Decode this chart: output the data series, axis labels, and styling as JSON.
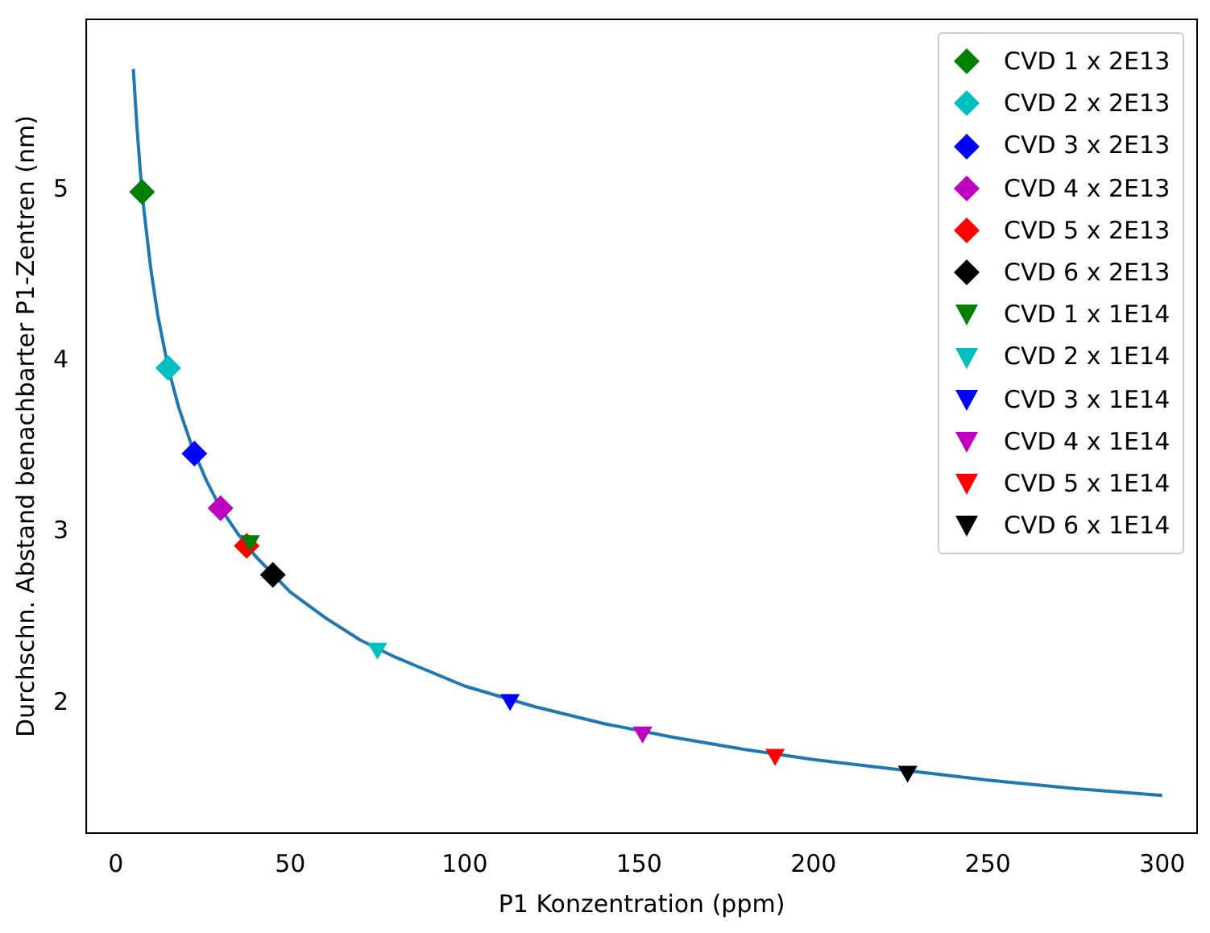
{
  "chart_data": {
    "type": "scatter",
    "xlabel": "P1 Konzentration (ppm)",
    "ylabel": "Durchschn. Abstand benachbarter P1-Zentren (nm)",
    "xlim": [
      -8.5,
      310
    ],
    "xticks": [
      0,
      50,
      100,
      150,
      200,
      250,
      300
    ],
    "ylim": [
      1.24,
      6.0
    ],
    "yticks": [
      2,
      3,
      4,
      5
    ],
    "grid": false,
    "legend": "top right",
    "series": [
      {
        "type": "line",
        "color": "#1f77b4",
        "marker": "none",
        "line_style": "solid",
        "x": [
          5,
          6,
          7,
          8,
          10,
          12,
          15,
          18,
          22,
          26,
          30,
          35,
          40,
          50,
          60,
          70,
          80,
          100,
          120,
          140,
          160,
          180,
          200,
          225,
          250,
          275,
          300
        ],
        "values": [
          5.71,
          5.38,
          5.11,
          4.89,
          4.54,
          4.27,
          3.96,
          3.73,
          3.49,
          3.3,
          3.14,
          2.99,
          2.86,
          2.65,
          2.5,
          2.37,
          2.27,
          2.1,
          1.98,
          1.88,
          1.8,
          1.73,
          1.67,
          1.61,
          1.55,
          1.5,
          1.46
        ]
      },
      {
        "name": "CVD 1 x 2E13",
        "color": "#008000",
        "marker": "diamond",
        "x": [
          7.5
        ],
        "values": [
          4.99
        ]
      },
      {
        "name": "CVD 2 x 2E13",
        "color": "#00bfbf",
        "marker": "diamond",
        "x": [
          15
        ],
        "values": [
          3.96
        ]
      },
      {
        "name": "CVD 3 x 2E13",
        "color": "#0000ff",
        "marker": "diamond",
        "x": [
          22.5
        ],
        "values": [
          3.46
        ]
      },
      {
        "name": "CVD 4 x 2E13",
        "color": "#bf00bf",
        "marker": "diamond",
        "x": [
          30
        ],
        "values": [
          3.14
        ]
      },
      {
        "name": "CVD 5 x 2E13",
        "color": "#ff0000",
        "marker": "diamond",
        "x": [
          37.5
        ],
        "values": [
          2.92
        ]
      },
      {
        "name": "CVD 6 x 2E13",
        "color": "#000000",
        "marker": "diamond",
        "x": [
          45
        ],
        "values": [
          2.75
        ]
      },
      {
        "name": "CVD 1 x 1E14",
        "color": "#008000",
        "marker": "triangle",
        "x": [
          38.5
        ],
        "values": [
          2.95
        ]
      },
      {
        "name": "CVD 2 x 1E14",
        "color": "#00bfbf",
        "marker": "triangle",
        "x": [
          75
        ],
        "values": [
          2.32
        ]
      },
      {
        "name": "CVD 3 x 1E14",
        "color": "#0000ff",
        "marker": "triangle",
        "x": [
          113
        ],
        "values": [
          2.02
        ]
      },
      {
        "name": "CVD 4 x 1E14",
        "color": "#bf00bf",
        "marker": "triangle",
        "x": [
          151
        ],
        "values": [
          1.83
        ]
      },
      {
        "name": "CVD 5 x 1E14",
        "color": "#ff0000",
        "marker": "triangle",
        "x": [
          189
        ],
        "values": [
          1.7
        ]
      },
      {
        "name": "CVD 6 x 1E14",
        "color": "#000000",
        "marker": "triangle",
        "x": [
          227
        ],
        "values": [
          1.6
        ]
      }
    ]
  }
}
